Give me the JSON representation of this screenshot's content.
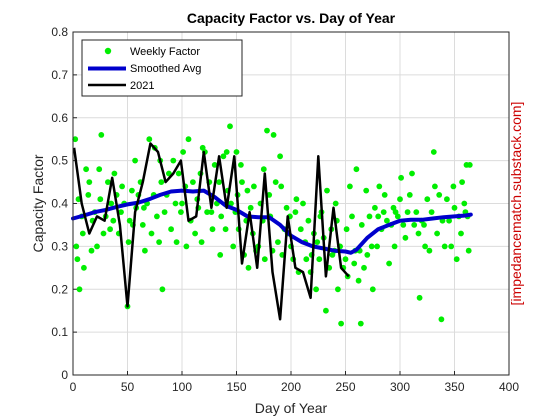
{
  "colors": {
    "weekly": "#00ee00",
    "smoothed": "#0000cc",
    "year2021": "#000000",
    "side_text": "#cc0000",
    "grid": "#dcdcdc",
    "axis": "#262626"
  },
  "chart_data": {
    "type": "line",
    "title": "Capacity Factor vs. Day of Year",
    "xlabel": "Day of Year",
    "ylabel": "Capacity Factor",
    "xlim": [
      0,
      400
    ],
    "ylim": [
      0,
      0.8
    ],
    "xticks": [
      0,
      50,
      100,
      150,
      200,
      250,
      300,
      350,
      400
    ],
    "yticks": [
      0,
      0.1,
      0.2,
      0.3,
      0.4,
      0.5,
      0.6,
      0.7,
      0.8
    ],
    "grid": true,
    "legend_position": "top-left",
    "side_annotation": "[impedancematch.substack.com]",
    "series": [
      {
        "name": "Weekly Factor",
        "style": "markers",
        "points": [
          [
            2,
            0.55
          ],
          [
            3,
            0.3
          ],
          [
            4,
            0.27
          ],
          [
            5,
            0.41
          ],
          [
            6,
            0.2
          ],
          [
            8,
            0.37
          ],
          [
            9,
            0.33
          ],
          [
            10,
            0.25
          ],
          [
            12,
            0.48
          ],
          [
            14,
            0.42
          ],
          [
            15,
            0.45
          ],
          [
            17,
            0.29
          ],
          [
            18,
            0.36
          ],
          [
            20,
            0.38
          ],
          [
            22,
            0.3
          ],
          [
            24,
            0.48
          ],
          [
            25,
            0.41
          ],
          [
            26,
            0.56
          ],
          [
            28,
            0.33
          ],
          [
            30,
            0.37
          ],
          [
            32,
            0.45
          ],
          [
            34,
            0.34
          ],
          [
            35,
            0.4
          ],
          [
            37,
            0.36
          ],
          [
            38,
            0.47
          ],
          [
            40,
            0.42
          ],
          [
            42,
            0.33
          ],
          [
            44,
            0.38
          ],
          [
            45,
            0.44
          ],
          [
            47,
            0.4
          ],
          [
            50,
            0.16
          ],
          [
            51,
            0.31
          ],
          [
            52,
            0.36
          ],
          [
            54,
            0.43
          ],
          [
            55,
            0.35
          ],
          [
            57,
            0.5
          ],
          [
            58,
            0.39
          ],
          [
            60,
            0.42
          ],
          [
            62,
            0.45
          ],
          [
            64,
            0.35
          ],
          [
            65,
            0.39
          ],
          [
            66,
            0.29
          ],
          [
            68,
            0.4
          ],
          [
            70,
            0.55
          ],
          [
            72,
            0.33
          ],
          [
            74,
            0.42
          ],
          [
            75,
            0.53
          ],
          [
            77,
            0.37
          ],
          [
            79,
            0.31
          ],
          [
            80,
            0.5
          ],
          [
            81,
            0.45
          ],
          [
            82,
            0.2
          ],
          [
            84,
            0.38
          ],
          [
            86,
            0.42
          ],
          [
            88,
            0.47
          ],
          [
            90,
            0.34
          ],
          [
            92,
            0.5
          ],
          [
            94,
            0.4
          ],
          [
            95,
            0.31
          ],
          [
            97,
            0.47
          ],
          [
            99,
            0.38
          ],
          [
            100,
            0.4
          ],
          [
            101,
            0.52
          ],
          [
            103,
            0.44
          ],
          [
            104,
            0.3
          ],
          [
            106,
            0.55
          ],
          [
            108,
            0.36
          ],
          [
            110,
            0.45
          ],
          [
            112,
            0.33
          ],
          [
            114,
            0.41
          ],
          [
            115,
            0.39
          ],
          [
            117,
            0.47
          ],
          [
            118,
            0.31
          ],
          [
            119,
            0.53
          ],
          [
            121,
            0.52
          ],
          [
            123,
            0.38
          ],
          [
            125,
            0.45
          ],
          [
            127,
            0.38
          ],
          [
            128,
            0.34
          ],
          [
            130,
            0.49
          ],
          [
            132,
            0.4
          ],
          [
            134,
            0.45
          ],
          [
            135,
            0.28
          ],
          [
            136,
            0.37
          ],
          [
            138,
            0.51
          ],
          [
            140,
            0.34
          ],
          [
            141,
            0.52
          ],
          [
            142,
            0.43
          ],
          [
            144,
            0.58
          ],
          [
            145,
            0.4
          ],
          [
            147,
            0.3
          ],
          [
            149,
            0.38
          ],
          [
            150,
            0.52
          ],
          [
            151,
            0.42
          ],
          [
            152,
            0.34
          ],
          [
            154,
            0.49
          ],
          [
            155,
            0.45
          ],
          [
            157,
            0.28
          ],
          [
            159,
            0.36
          ],
          [
            160,
            0.43
          ],
          [
            161,
            0.25
          ],
          [
            163,
            0.39
          ],
          [
            165,
            0.33
          ],
          [
            166,
            0.44
          ],
          [
            168,
            0.29
          ],
          [
            170,
            0.3
          ],
          [
            172,
            0.4
          ],
          [
            174,
            0.36
          ],
          [
            175,
            0.48
          ],
          [
            176,
            0.27
          ],
          [
            178,
            0.57
          ],
          [
            180,
            0.42
          ],
          [
            181,
            0.37
          ],
          [
            183,
            0.29
          ],
          [
            184,
            0.56
          ],
          [
            186,
            0.45
          ],
          [
            188,
            0.31
          ],
          [
            190,
            0.51
          ],
          [
            191,
            0.44
          ],
          [
            192,
            0.28
          ],
          [
            194,
            0.34
          ],
          [
            196,
            0.39
          ],
          [
            197,
            0.33
          ],
          [
            199,
            0.37
          ],
          [
            200,
            0.3
          ],
          [
            202,
            0.27
          ],
          [
            204,
            0.38
          ],
          [
            205,
            0.41
          ],
          [
            207,
            0.24
          ],
          [
            209,
            0.34
          ],
          [
            211,
            0.4
          ],
          [
            213,
            0.31
          ],
          [
            214,
            0.27
          ],
          [
            216,
            0.36
          ],
          [
            218,
            0.24
          ],
          [
            219,
            0.28
          ],
          [
            221,
            0.33
          ],
          [
            223,
            0.2
          ],
          [
            224,
            0.31
          ],
          [
            226,
            0.27
          ],
          [
            227,
            0.37
          ],
          [
            228,
            0.38
          ],
          [
            230,
            0.32
          ],
          [
            232,
            0.15
          ],
          [
            233,
            0.43
          ],
          [
            235,
            0.25
          ],
          [
            237,
            0.34
          ],
          [
            238,
            0.28
          ],
          [
            240,
            0.29
          ],
          [
            241,
            0.4
          ],
          [
            242,
            0.36
          ],
          [
            243,
            0.2
          ],
          [
            245,
            0.3
          ],
          [
            246,
            0.12
          ],
          [
            248,
            0.25
          ],
          [
            250,
            0.27
          ],
          [
            251,
            0.34
          ],
          [
            252,
            0.23
          ],
          [
            254,
            0.44
          ],
          [
            256,
            0.37
          ],
          [
            258,
            0.26
          ],
          [
            259,
            0.29
          ],
          [
            260,
            0.48
          ],
          [
            262,
            0.22
          ],
          [
            263,
            0.29
          ],
          [
            264,
            0.12
          ],
          [
            265,
            0.35
          ],
          [
            267,
            0.25
          ],
          [
            269,
            0.43
          ],
          [
            270,
            0.28
          ],
          [
            272,
            0.37
          ],
          [
            274,
            0.3
          ],
          [
            275,
            0.2
          ],
          [
            277,
            0.39
          ],
          [
            279,
            0.3
          ],
          [
            280,
            0.37
          ],
          [
            281,
            0.44
          ],
          [
            283,
            0.34
          ],
          [
            285,
            0.38
          ],
          [
            286,
            0.42
          ],
          [
            288,
            0.36
          ],
          [
            290,
            0.26
          ],
          [
            292,
            0.35
          ],
          [
            294,
            0.39
          ],
          [
            295,
            0.3
          ],
          [
            296,
            0.38
          ],
          [
            298,
            0.37
          ],
          [
            300,
            0.41
          ],
          [
            301,
            0.46
          ],
          [
            303,
            0.35
          ],
          [
            305,
            0.32
          ],
          [
            307,
            0.38
          ],
          [
            309,
            0.42
          ],
          [
            311,
            0.47
          ],
          [
            313,
            0.35
          ],
          [
            315,
            0.38
          ],
          [
            317,
            0.33
          ],
          [
            318,
            0.18
          ],
          [
            320,
            0.36
          ],
          [
            322,
            0.35
          ],
          [
            323,
            0.3
          ],
          [
            325,
            0.41
          ],
          [
            327,
            0.29
          ],
          [
            329,
            0.38
          ],
          [
            331,
            0.52
          ],
          [
            332,
            0.44
          ],
          [
            334,
            0.33
          ],
          [
            336,
            0.42
          ],
          [
            338,
            0.13
          ],
          [
            339,
            0.36
          ],
          [
            341,
            0.3
          ],
          [
            343,
            0.41
          ],
          [
            345,
            0.36
          ],
          [
            347,
            0.3
          ],
          [
            349,
            0.44
          ],
          [
            350,
            0.39
          ],
          [
            352,
            0.27
          ],
          [
            354,
            0.37
          ],
          [
            356,
            0.33
          ],
          [
            357,
            0.45
          ],
          [
            359,
            0.4
          ],
          [
            360,
            0.38
          ],
          [
            361,
            0.49
          ],
          [
            362,
            0.37
          ],
          [
            363,
            0.29
          ],
          [
            364,
            0.49
          ]
        ]
      },
      {
        "name": "Smoothed Avg",
        "style": "thick-line",
        "points": [
          [
            0,
            0.365
          ],
          [
            10,
            0.372
          ],
          [
            20,
            0.38
          ],
          [
            30,
            0.385
          ],
          [
            40,
            0.392
          ],
          [
            50,
            0.398
          ],
          [
            60,
            0.402
          ],
          [
            70,
            0.41
          ],
          [
            80,
            0.42
          ],
          [
            90,
            0.428
          ],
          [
            100,
            0.43
          ],
          [
            110,
            0.428
          ],
          [
            120,
            0.43
          ],
          [
            130,
            0.415
          ],
          [
            140,
            0.395
          ],
          [
            150,
            0.385
          ],
          [
            160,
            0.37
          ],
          [
            170,
            0.368
          ],
          [
            180,
            0.368
          ],
          [
            190,
            0.35
          ],
          [
            200,
            0.325
          ],
          [
            210,
            0.31
          ],
          [
            220,
            0.3
          ],
          [
            230,
            0.295
          ],
          [
            240,
            0.29
          ],
          [
            250,
            0.288
          ],
          [
            255,
            0.285
          ],
          [
            260,
            0.292
          ],
          [
            270,
            0.32
          ],
          [
            280,
            0.34
          ],
          [
            290,
            0.35
          ],
          [
            300,
            0.36
          ],
          [
            310,
            0.362
          ],
          [
            320,
            0.362
          ],
          [
            330,
            0.365
          ],
          [
            340,
            0.368
          ],
          [
            350,
            0.37
          ],
          [
            360,
            0.372
          ],
          [
            365,
            0.374
          ]
        ]
      },
      {
        "name": "2021",
        "style": "line",
        "points": [
          [
            1,
            0.53
          ],
          [
            8,
            0.4
          ],
          [
            15,
            0.33
          ],
          [
            22,
            0.37
          ],
          [
            29,
            0.36
          ],
          [
            36,
            0.46
          ],
          [
            43,
            0.35
          ],
          [
            50,
            0.16
          ],
          [
            57,
            0.38
          ],
          [
            64,
            0.45
          ],
          [
            71,
            0.54
          ],
          [
            78,
            0.52
          ],
          [
            85,
            0.45
          ],
          [
            92,
            0.47
          ],
          [
            99,
            0.5
          ],
          [
            106,
            0.36
          ],
          [
            113,
            0.37
          ],
          [
            120,
            0.52
          ],
          [
            127,
            0.39
          ],
          [
            134,
            0.51
          ],
          [
            141,
            0.39
          ],
          [
            148,
            0.51
          ],
          [
            155,
            0.26
          ],
          [
            162,
            0.38
          ],
          [
            169,
            0.25
          ],
          [
            176,
            0.47
          ],
          [
            183,
            0.24
          ],
          [
            190,
            0.13
          ],
          [
            197,
            0.37
          ],
          [
            204,
            0.25
          ],
          [
            211,
            0.24
          ],
          [
            218,
            0.18
          ],
          [
            225,
            0.51
          ],
          [
            232,
            0.23
          ],
          [
            239,
            0.39
          ],
          [
            246,
            0.25
          ],
          [
            253,
            0.23
          ]
        ]
      }
    ]
  }
}
